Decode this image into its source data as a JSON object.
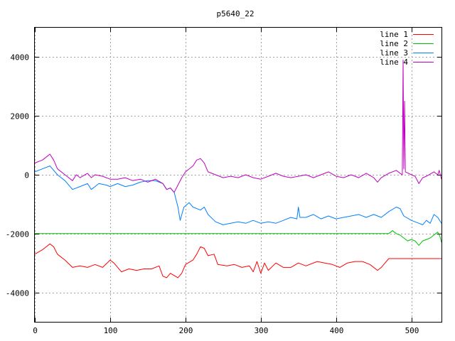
{
  "chart_data": {
    "type": "line",
    "title": "p5640_22",
    "xlabel": "",
    "ylabel": "",
    "xlim": [
      0,
      540
    ],
    "ylim": [
      -5000,
      5000
    ],
    "x_ticks": [
      0,
      100,
      200,
      300,
      400,
      500
    ],
    "y_ticks": [
      -4000,
      -2000,
      0,
      2000,
      4000
    ],
    "grid": true,
    "legend_position": "top-right",
    "series": [
      {
        "name": "line 1",
        "color": "#ff0000",
        "points": [
          [
            0,
            -2700
          ],
          [
            10,
            -2550
          ],
          [
            20,
            -2350
          ],
          [
            25,
            -2450
          ],
          [
            30,
            -2700
          ],
          [
            40,
            -2900
          ],
          [
            50,
            -3150
          ],
          [
            60,
            -3100
          ],
          [
            70,
            -3150
          ],
          [
            80,
            -3050
          ],
          [
            90,
            -3150
          ],
          [
            100,
            -2900
          ],
          [
            105,
            -3000
          ],
          [
            115,
            -3300
          ],
          [
            125,
            -3200
          ],
          [
            135,
            -3250
          ],
          [
            145,
            -3200
          ],
          [
            155,
            -3200
          ],
          [
            165,
            -3100
          ],
          [
            170,
            -3450
          ],
          [
            175,
            -3500
          ],
          [
            180,
            -3350
          ],
          [
            190,
            -3500
          ],
          [
            195,
            -3350
          ],
          [
            200,
            -3050
          ],
          [
            210,
            -2900
          ],
          [
            215,
            -2700
          ],
          [
            220,
            -2450
          ],
          [
            225,
            -2500
          ],
          [
            230,
            -2750
          ],
          [
            238,
            -2700
          ],
          [
            243,
            -3050
          ],
          [
            255,
            -3100
          ],
          [
            265,
            -3050
          ],
          [
            275,
            -3150
          ],
          [
            285,
            -3100
          ],
          [
            290,
            -3300
          ],
          [
            295,
            -2950
          ],
          [
            300,
            -3350
          ],
          [
            305,
            -3000
          ],
          [
            310,
            -3250
          ],
          [
            320,
            -3000
          ],
          [
            330,
            -3150
          ],
          [
            340,
            -3150
          ],
          [
            350,
            -3000
          ],
          [
            360,
            -3100
          ],
          [
            375,
            -2950
          ],
          [
            385,
            -3000
          ],
          [
            395,
            -3050
          ],
          [
            405,
            -3150
          ],
          [
            415,
            -3000
          ],
          [
            425,
            -2950
          ],
          [
            435,
            -2950
          ],
          [
            445,
            -3050
          ],
          [
            455,
            -3250
          ],
          [
            460,
            -3150
          ],
          [
            465,
            -3000
          ],
          [
            470,
            -2850
          ],
          [
            540,
            -2850
          ]
        ]
      },
      {
        "name": "line 2",
        "color": "#00c000",
        "points": [
          [
            0,
            -2000
          ],
          [
            470,
            -2000
          ],
          [
            475,
            -1900
          ],
          [
            480,
            -2000
          ],
          [
            485,
            -2050
          ],
          [
            490,
            -2150
          ],
          [
            495,
            -2250
          ],
          [
            500,
            -2200
          ],
          [
            505,
            -2250
          ],
          [
            510,
            -2400
          ],
          [
            515,
            -2250
          ],
          [
            520,
            -2200
          ],
          [
            525,
            -2150
          ],
          [
            530,
            -2050
          ],
          [
            535,
            -1950
          ],
          [
            538,
            -2100
          ],
          [
            540,
            -2300
          ]
        ]
      },
      {
        "name": "line 3",
        "color": "#0080ff",
        "points": [
          [
            0,
            100
          ],
          [
            10,
            200
          ],
          [
            20,
            300
          ],
          [
            30,
            0
          ],
          [
            40,
            -200
          ],
          [
            50,
            -500
          ],
          [
            60,
            -400
          ],
          [
            70,
            -300
          ],
          [
            75,
            -500
          ],
          [
            80,
            -400
          ],
          [
            85,
            -300
          ],
          [
            95,
            -350
          ],
          [
            100,
            -400
          ],
          [
            110,
            -300
          ],
          [
            120,
            -400
          ],
          [
            130,
            -350
          ],
          [
            140,
            -250
          ],
          [
            150,
            -200
          ],
          [
            160,
            -200
          ],
          [
            170,
            -300
          ],
          [
            175,
            -500
          ],
          [
            180,
            -450
          ],
          [
            185,
            -600
          ],
          [
            190,
            -1100
          ],
          [
            193,
            -1550
          ],
          [
            198,
            -1100
          ],
          [
            205,
            -950
          ],
          [
            210,
            -1100
          ],
          [
            220,
            -1200
          ],
          [
            225,
            -1100
          ],
          [
            230,
            -1350
          ],
          [
            240,
            -1600
          ],
          [
            250,
            -1700
          ],
          [
            260,
            -1650
          ],
          [
            270,
            -1600
          ],
          [
            280,
            -1650
          ],
          [
            290,
            -1550
          ],
          [
            300,
            -1650
          ],
          [
            310,
            -1600
          ],
          [
            320,
            -1650
          ],
          [
            330,
            -1550
          ],
          [
            340,
            -1450
          ],
          [
            348,
            -1500
          ],
          [
            350,
            -1100
          ],
          [
            352,
            -1450
          ],
          [
            360,
            -1450
          ],
          [
            370,
            -1350
          ],
          [
            380,
            -1500
          ],
          [
            390,
            -1400
          ],
          [
            400,
            -1500
          ],
          [
            410,
            -1450
          ],
          [
            420,
            -1400
          ],
          [
            430,
            -1350
          ],
          [
            440,
            -1450
          ],
          [
            450,
            -1350
          ],
          [
            460,
            -1450
          ],
          [
            470,
            -1250
          ],
          [
            480,
            -1100
          ],
          [
            485,
            -1150
          ],
          [
            490,
            -1400
          ],
          [
            500,
            -1550
          ],
          [
            510,
            -1650
          ],
          [
            515,
            -1700
          ],
          [
            520,
            -1550
          ],
          [
            525,
            -1650
          ],
          [
            530,
            -1350
          ],
          [
            535,
            -1450
          ],
          [
            540,
            -1650
          ]
        ]
      },
      {
        "name": "line 4",
        "color": "#c000c0",
        "points": [
          [
            0,
            400
          ],
          [
            10,
            500
          ],
          [
            15,
            600
          ],
          [
            20,
            700
          ],
          [
            25,
            500
          ],
          [
            30,
            200
          ],
          [
            40,
            0
          ],
          [
            50,
            -200
          ],
          [
            55,
            0
          ],
          [
            60,
            -100
          ],
          [
            70,
            50
          ],
          [
            75,
            -100
          ],
          [
            80,
            0
          ],
          [
            90,
            -50
          ],
          [
            100,
            -150
          ],
          [
            110,
            -150
          ],
          [
            120,
            -100
          ],
          [
            130,
            -200
          ],
          [
            140,
            -150
          ],
          [
            150,
            -250
          ],
          [
            160,
            -150
          ],
          [
            170,
            -300
          ],
          [
            175,
            -500
          ],
          [
            180,
            -450
          ],
          [
            185,
            -600
          ],
          [
            190,
            -350
          ],
          [
            195,
            -100
          ],
          [
            200,
            100
          ],
          [
            210,
            300
          ],
          [
            215,
            500
          ],
          [
            220,
            550
          ],
          [
            225,
            400
          ],
          [
            230,
            100
          ],
          [
            240,
            0
          ],
          [
            250,
            -100
          ],
          [
            260,
            -50
          ],
          [
            270,
            -100
          ],
          [
            280,
            0
          ],
          [
            290,
            -100
          ],
          [
            300,
            -150
          ],
          [
            310,
            -50
          ],
          [
            320,
            50
          ],
          [
            330,
            -50
          ],
          [
            340,
            -100
          ],
          [
            350,
            -50
          ],
          [
            360,
            0
          ],
          [
            370,
            -100
          ],
          [
            380,
            0
          ],
          [
            390,
            100
          ],
          [
            400,
            -50
          ],
          [
            410,
            -100
          ],
          [
            420,
            0
          ],
          [
            430,
            -100
          ],
          [
            440,
            50
          ],
          [
            450,
            -100
          ],
          [
            455,
            -250
          ],
          [
            460,
            -100
          ],
          [
            470,
            50
          ],
          [
            480,
            150
          ],
          [
            485,
            50
          ],
          [
            488,
            0
          ],
          [
            489,
            3900
          ],
          [
            490,
            200
          ],
          [
            491,
            2500
          ],
          [
            492,
            100
          ],
          [
            500,
            0
          ],
          [
            505,
            -50
          ],
          [
            510,
            -300
          ],
          [
            515,
            -100
          ],
          [
            520,
            -50
          ],
          [
            530,
            100
          ],
          [
            535,
            0
          ],
          [
            537,
            150
          ],
          [
            540,
            -150
          ]
        ]
      }
    ]
  }
}
